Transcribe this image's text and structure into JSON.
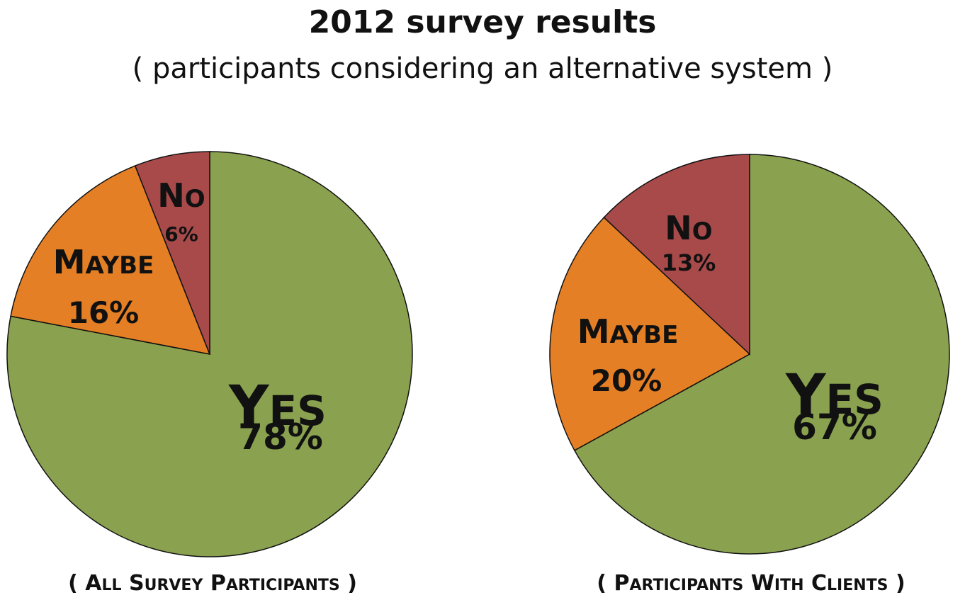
{
  "title": "2012 survey results",
  "subtitle": "( participants considering an alternative system )",
  "colors": {
    "yes": "#8aa24f",
    "maybe": "#e57f25",
    "no": "#a84a4a"
  },
  "chart_data": [
    {
      "type": "pie",
      "caption": "( All Survey Participants )",
      "slices": [
        {
          "name": "Yes",
          "value": 78,
          "label_pct": "78%"
        },
        {
          "name": "Maybe",
          "value": 16,
          "label_pct": "16%"
        },
        {
          "name": "No",
          "value": 6,
          "label_pct": "6%"
        }
      ]
    },
    {
      "type": "pie",
      "caption": "( Participants with Clients )",
      "slices": [
        {
          "name": "Yes",
          "value": 67,
          "label_pct": "67%"
        },
        {
          "name": "Maybe",
          "value": 20,
          "label_pct": "20%"
        },
        {
          "name": "No",
          "value": 13,
          "label_pct": "13%"
        }
      ]
    }
  ]
}
